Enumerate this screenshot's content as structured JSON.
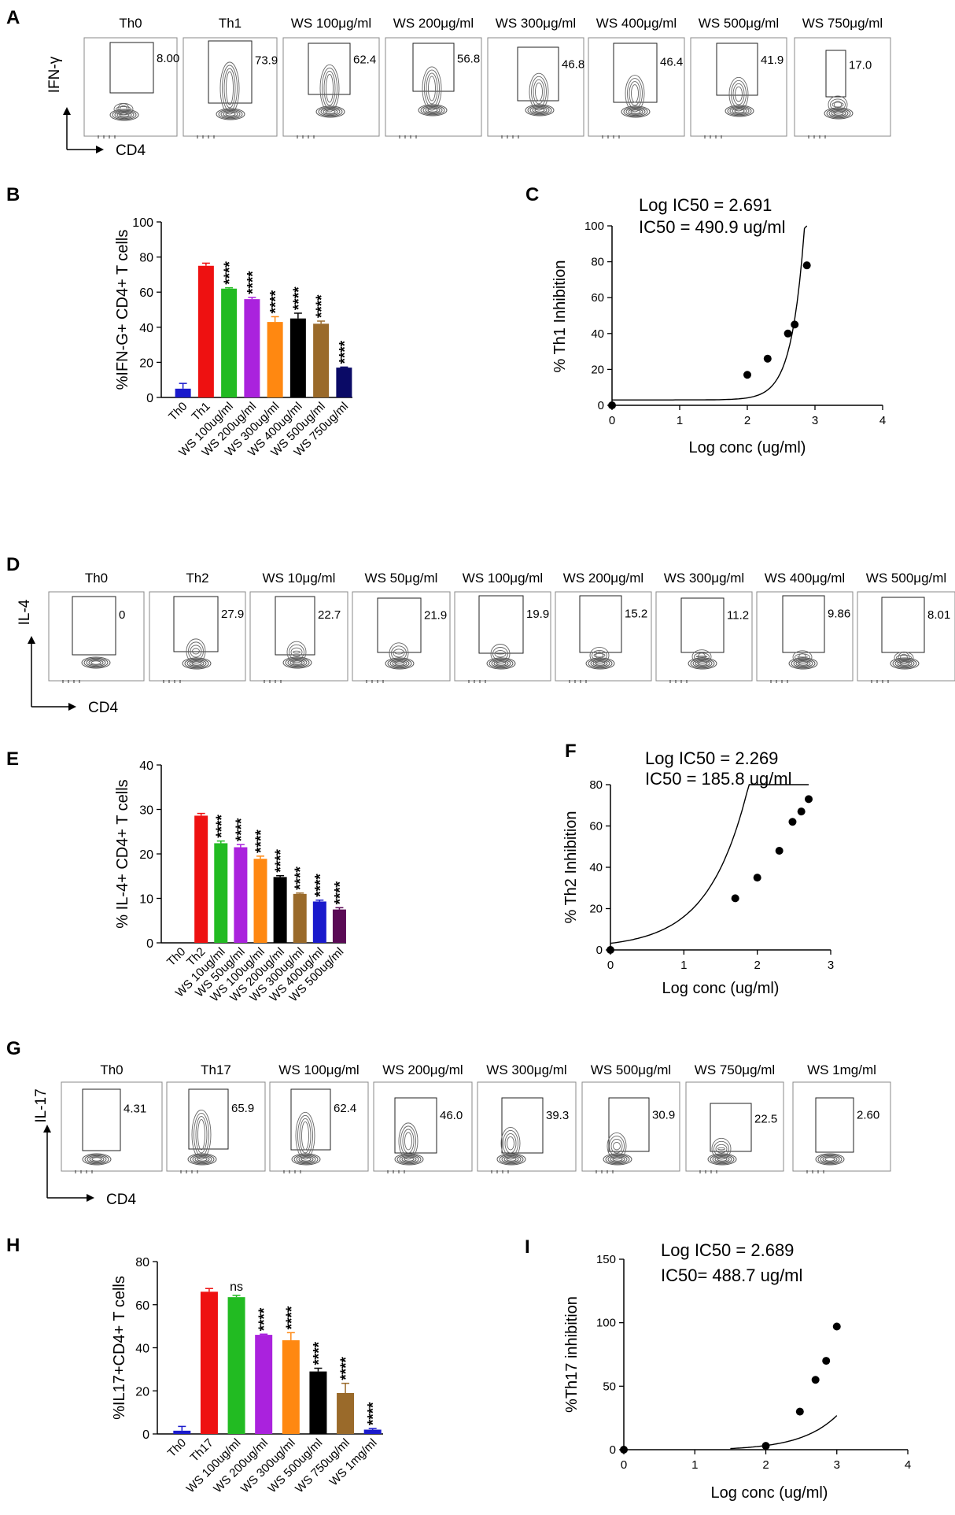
{
  "panel_letters": [
    "A",
    "B",
    "C",
    "D",
    "E",
    "F",
    "G",
    "H",
    "I"
  ],
  "flow": [
    {
      "panel": "A",
      "y_label": "IFN-γ",
      "x_label": "CD4",
      "plots": [
        {
          "label": "Th0",
          "value": "8.00"
        },
        {
          "label": "Th1",
          "value": "73.9"
        },
        {
          "label": "WS 100μg/ml",
          "value": "62.4"
        },
        {
          "label": "WS 200μg/ml",
          "value": "56.8"
        },
        {
          "label": "WS 300μg/ml",
          "value": "46.8"
        },
        {
          "label": "WS 400μg/ml",
          "value": "46.4"
        },
        {
          "label": "WS 500μg/ml",
          "value": "41.9"
        },
        {
          "label": "WS 750μg/ml",
          "value": "17.0"
        }
      ]
    },
    {
      "panel": "D",
      "y_label": "IL-4",
      "x_label": "CD4",
      "plots": [
        {
          "label": "Th0",
          "value": "0"
        },
        {
          "label": "Th2",
          "value": "27.9"
        },
        {
          "label": "WS 10μg/ml",
          "value": "22.7"
        },
        {
          "label": "WS 50μg/ml",
          "value": "21.9"
        },
        {
          "label": "WS 100μg/ml",
          "value": "19.9"
        },
        {
          "label": "WS 200μg/ml",
          "value": "15.2"
        },
        {
          "label": "WS 300μg/ml",
          "value": "11.2"
        },
        {
          "label": "WS 400μg/ml",
          "value": "9.86"
        },
        {
          "label": "WS 500μg/ml",
          "value": "8.01"
        }
      ]
    },
    {
      "panel": "G",
      "y_label": "IL-17",
      "x_label": "CD4",
      "plots": [
        {
          "label": "Th0",
          "value": "4.31"
        },
        {
          "label": "Th17",
          "value": "65.9"
        },
        {
          "label": "WS 100μg/ml",
          "value": "62.4"
        },
        {
          "label": "WS 200μg/ml",
          "value": "46.0"
        },
        {
          "label": "WS 300μg/ml",
          "value": "39.3"
        },
        {
          "label": "WS 500μg/ml",
          "value": "30.9"
        },
        {
          "label": "WS 750μg/ml",
          "value": "22.5"
        },
        {
          "label": "WS 1mg/ml",
          "value": "2.60"
        }
      ]
    }
  ],
  "chart_data": [
    {
      "panel": "B",
      "type": "bar",
      "ylabel": "%IFN-G+ CD4+ T cells",
      "ylim": [
        0,
        100
      ],
      "yticks": [
        0,
        20,
        40,
        60,
        80,
        100
      ],
      "categories": [
        "Th0",
        "Th1",
        "WS 100ug/ml",
        "WS 200ug/ml",
        "WS 300ug/ml",
        "WS 400ug/ml",
        "WS 500ug/ml",
        "WS 750ug/ml"
      ],
      "values": [
        5,
        75,
        62,
        56,
        43,
        45,
        42,
        17
      ],
      "errors": [
        3,
        1.5,
        0.5,
        1,
        3,
        3,
        1.5,
        0.3
      ],
      "colors": [
        "#1a1acc",
        "#ee1111",
        "#22bb22",
        "#aa22dd",
        "#ff8811",
        "#000000",
        "#9a6a2a",
        "#0a0a66"
      ],
      "significance": [
        "",
        "",
        "****",
        "****",
        "****",
        "****",
        "****",
        "****"
      ]
    },
    {
      "panel": "C",
      "type": "scatter",
      "annotation": [
        "Log IC50 = 2.691",
        "IC50 = 490.9 ug/ml"
      ],
      "xlabel": "Log conc (ug/ml)",
      "ylabel": "% Th1 Inhibition",
      "xlim": [
        0,
        4
      ],
      "ylim": [
        0,
        100
      ],
      "xticks": [
        0,
        1,
        2,
        3,
        4
      ],
      "yticks": [
        0,
        20,
        40,
        60,
        80,
        100
      ],
      "x": [
        0,
        2.0,
        2.3,
        2.6,
        2.7,
        2.88
      ],
      "y": [
        0,
        17,
        26,
        40,
        45,
        78
      ],
      "curve": {
        "bottom": 3,
        "b": 0.22,
        "k": 2.7,
        "xmax": 2.88
      }
    },
    {
      "panel": "E",
      "type": "bar",
      "ylabel": "% IL-4+ CD4+ T cells",
      "ylim": [
        0,
        40
      ],
      "yticks": [
        0,
        10,
        20,
        30,
        40
      ],
      "categories": [
        "Th0",
        "Th2",
        "WS 10ug/ml",
        "WS 50ug/ml",
        "WS 100ug/ml",
        "WS 200ug/ml",
        "WS 300ug/ml",
        "WS 400ug/ml",
        "WS 500ug/ml"
      ],
      "values": [
        0,
        28.6,
        22.4,
        21.5,
        18.9,
        14.8,
        11.0,
        9.3,
        7.5
      ],
      "errors": [
        0,
        0.5,
        0.5,
        0.6,
        0.6,
        0.3,
        0.2,
        0.3,
        0.4
      ],
      "colors": [
        "#1a1acc",
        "#ee1111",
        "#22bb22",
        "#aa22dd",
        "#ff8811",
        "#000000",
        "#9a6a2a",
        "#1a1acc",
        "#5a0a55"
      ],
      "significance": [
        "",
        "",
        "****",
        "****",
        "****",
        "****",
        "****",
        "****",
        "****"
      ]
    },
    {
      "panel": "F",
      "type": "scatter",
      "annotation": [
        "Log IC50 =  2.269",
        "IC50 = 185.8 ug/ml"
      ],
      "xlabel": "Log conc (ug/ml)",
      "ylabel": "% Th2 Inhibition",
      "xlim": [
        0,
        3
      ],
      "ylim": [
        0,
        80
      ],
      "xticks": [
        0,
        1,
        2,
        3
      ],
      "yticks": [
        0,
        20,
        40,
        60,
        80
      ],
      "x": [
        0,
        1.7,
        2.0,
        2.3,
        2.48,
        2.6,
        2.7
      ],
      "y": [
        0,
        25,
        35,
        48,
        62,
        67,
        73
      ],
      "curve": {
        "bottom": 0.8,
        "b": 0.62,
        "k": 1.58,
        "xmax": 2.7
      }
    },
    {
      "panel": "H",
      "type": "bar",
      "ylabel": "%IL17+CD4+ T cells",
      "ylim": [
        0,
        80
      ],
      "yticks": [
        0,
        20,
        40,
        60,
        80
      ],
      "categories": [
        "Th0",
        "Th17",
        "WS 100ug/ml",
        "WS 200ug/ml",
        "WS 300ug/ml",
        "WS 500ug/ml",
        "WS 750ug/ml",
        "WS 1mg/ml"
      ],
      "values": [
        1.5,
        66,
        63.5,
        46,
        43.5,
        29,
        19,
        2
      ],
      "errors": [
        2,
        1.5,
        0.8,
        0.3,
        3.5,
        1.5,
        4.5,
        0.5
      ],
      "colors": [
        "#1a1acc",
        "#ee1111",
        "#22bb22",
        "#aa22dd",
        "#ff8811",
        "#000000",
        "#9a6a2a",
        "#1a1acc"
      ],
      "significance": [
        "",
        "",
        "ns",
        "****",
        "****",
        "****",
        "****",
        "****"
      ]
    },
    {
      "panel": "I",
      "type": "scatter",
      "annotation": [
        "Log IC50 = 2.689",
        "IC50= 488.7 ug/ml"
      ],
      "xlabel": "Log conc (ug/ml)",
      "ylabel": "%Th17 inhibition",
      "xlim": [
        0,
        4
      ],
      "ylim": [
        0,
        150
      ],
      "xticks": [
        0,
        1,
        2,
        3,
        4
      ],
      "yticks": [
        0,
        50,
        100,
        150
      ],
      "x": [
        0,
        2.0,
        2.48,
        2.7,
        2.85,
        3.0
      ],
      "y": [
        0,
        3,
        30,
        55,
        70,
        97
      ],
      "curve": {
        "bottom": 0,
        "b": 0.58,
        "k": 3.25,
        "xmin": 1.5,
        "xmax": 3.0
      }
    }
  ]
}
